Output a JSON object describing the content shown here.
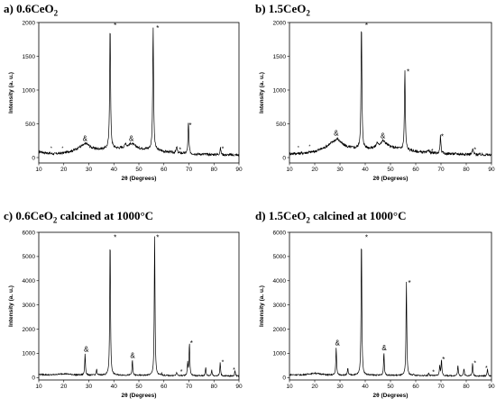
{
  "panels": [
    {
      "title_main": "a) 0.6CeO",
      "title_sub": "2",
      "title_tail": ""
    },
    {
      "title_main": "b) 1.5CeO",
      "title_sub": "2",
      "title_tail": ""
    },
    {
      "title_main": "c) 0.6CeO",
      "title_sub": "2",
      "title_tail": " calcined at 1000°C"
    },
    {
      "title_main": "d) 1.5CeO",
      "title_sub": "2",
      "title_tail": " calcined at 1000°C"
    }
  ],
  "chart_data": [
    {
      "type": "line",
      "title": "a) 0.6CeO2",
      "xlabel": "2θ (Degrees)",
      "ylabel": "Intensity (a. u.)",
      "xlim": [
        10,
        90
      ],
      "ylim": [
        -80,
        2000
      ],
      "xticks": [
        10,
        20,
        30,
        40,
        50,
        60,
        70,
        80,
        90
      ],
      "yticks": [
        0,
        500,
        1000,
        1500,
        2000
      ],
      "baseline": [
        [
          10,
          90
        ],
        [
          13,
          70
        ],
        [
          16,
          55
        ],
        [
          20,
          70
        ],
        [
          24,
          110
        ],
        [
          27,
          170
        ],
        [
          29,
          210
        ],
        [
          31,
          150
        ],
        [
          33,
          130
        ],
        [
          36,
          130
        ],
        [
          38,
          140
        ],
        [
          42,
          140
        ],
        [
          45,
          160
        ],
        [
          47,
          210
        ],
        [
          50,
          140
        ],
        [
          55,
          120
        ],
        [
          60,
          90
        ],
        [
          65,
          70
        ],
        [
          70,
          55
        ],
        [
          75,
          50
        ],
        [
          80,
          45
        ],
        [
          85,
          40
        ],
        [
          90,
          38
        ]
      ],
      "peaks": [
        {
          "x": 38.5,
          "y": 2000,
          "w": 0.35
        },
        {
          "x": 44.7,
          "y": 220,
          "w": 0.5
        },
        {
          "x": 55.7,
          "y": 1960,
          "w": 0.35
        },
        {
          "x": 65.1,
          "y": 160,
          "w": 0.4
        },
        {
          "x": 69.8,
          "y": 520,
          "w": 0.35
        },
        {
          "x": 82.6,
          "y": 140,
          "w": 0.4
        }
      ],
      "noise": 18,
      "annotations": [
        {
          "x": 15,
          "y": 150,
          "text": "*",
          "size": 5
        },
        {
          "x": 19.5,
          "y": 150,
          "text": "*",
          "size": 5
        },
        {
          "x": 28.5,
          "y": 250,
          "text": "&",
          "size": 8
        },
        {
          "x": 47,
          "y": 250,
          "text": "&",
          "size": 8
        },
        {
          "x": 40.5,
          "y": 1980,
          "text": "*",
          "size": 8
        },
        {
          "x": 57.5,
          "y": 1940,
          "text": "*",
          "size": 8
        },
        {
          "x": 66.5,
          "y": 140,
          "text": "*",
          "size": 7
        },
        {
          "x": 70.5,
          "y": 500,
          "text": "*",
          "size": 8
        },
        {
          "x": 83.5,
          "y": 150,
          "text": "*",
          "size": 7
        }
      ]
    },
    {
      "type": "line",
      "title": "b) 1.5CeO2",
      "xlabel": "2θ (Degrees)",
      "ylabel": "Intensity (a. u.)",
      "xlim": [
        10,
        90
      ],
      "ylim": [
        -80,
        2000
      ],
      "xticks": [
        10,
        20,
        30,
        40,
        50,
        60,
        70,
        80,
        90
      ],
      "yticks": [
        0,
        500,
        1000,
        1500,
        2000
      ],
      "baseline": [
        [
          10,
          60
        ],
        [
          13,
          60
        ],
        [
          16,
          70
        ],
        [
          20,
          90
        ],
        [
          24,
          150
        ],
        [
          27,
          230
        ],
        [
          29,
          280
        ],
        [
          31,
          200
        ],
        [
          33,
          160
        ],
        [
          36,
          140
        ],
        [
          38,
          140
        ],
        [
          42,
          140
        ],
        [
          45,
          170
        ],
        [
          47,
          250
        ],
        [
          50,
          160
        ],
        [
          55,
          120
        ],
        [
          60,
          90
        ],
        [
          65,
          70
        ],
        [
          70,
          60
        ],
        [
          75,
          55
        ],
        [
          80,
          50
        ],
        [
          85,
          45
        ],
        [
          90,
          40
        ]
      ],
      "peaks": [
        {
          "x": 38.5,
          "y": 2000,
          "w": 0.35
        },
        {
          "x": 44.7,
          "y": 230,
          "w": 0.5
        },
        {
          "x": 55.7,
          "y": 1300,
          "w": 0.35
        },
        {
          "x": 65.1,
          "y": 130,
          "w": 0.4
        },
        {
          "x": 69.8,
          "y": 330,
          "w": 0.35
        },
        {
          "x": 82.6,
          "y": 130,
          "w": 0.4
        }
      ],
      "noise": 20,
      "annotations": [
        {
          "x": 13.5,
          "y": 160,
          "text": "*",
          "size": 5
        },
        {
          "x": 18,
          "y": 180,
          "text": "*",
          "size": 5
        },
        {
          "x": 28.5,
          "y": 330,
          "text": "&",
          "size": 8
        },
        {
          "x": 47,
          "y": 290,
          "text": "&",
          "size": 8
        },
        {
          "x": 40.5,
          "y": 1980,
          "text": "*",
          "size": 8
        },
        {
          "x": 57,
          "y": 1290,
          "text": "*",
          "size": 8
        },
        {
          "x": 66.5,
          "y": 120,
          "text": "*",
          "size": 7
        },
        {
          "x": 70.5,
          "y": 330,
          "text": "*",
          "size": 8
        },
        {
          "x": 83.5,
          "y": 140,
          "text": "*",
          "size": 7
        }
      ]
    },
    {
      "type": "line",
      "title": "c) 0.6CeO2 calcined at 1000°C",
      "xlabel": "2θ (Degrees)",
      "ylabel": "Intensity (a. u.)",
      "xlim": [
        10,
        90
      ],
      "ylim": [
        -100,
        6000
      ],
      "xticks": [
        10,
        20,
        30,
        40,
        50,
        60,
        70,
        80,
        90
      ],
      "yticks": [
        0,
        1000,
        2000,
        3000,
        4000,
        5000,
        6000
      ],
      "baseline": [
        [
          10,
          130
        ],
        [
          15,
          110
        ],
        [
          20,
          160
        ],
        [
          25,
          110
        ],
        [
          30,
          100
        ],
        [
          40,
          100
        ],
        [
          50,
          90
        ],
        [
          60,
          80
        ],
        [
          70,
          75
        ],
        [
          80,
          70
        ],
        [
          90,
          60
        ]
      ],
      "peaks": [
        {
          "x": 28.5,
          "y": 1000,
          "w": 0.3
        },
        {
          "x": 33.1,
          "y": 350,
          "w": 0.3
        },
        {
          "x": 38.5,
          "y": 5900,
          "w": 0.3
        },
        {
          "x": 47.4,
          "y": 720,
          "w": 0.3
        },
        {
          "x": 56.3,
          "y": 5900,
          "w": 0.3
        },
        {
          "x": 59.1,
          "y": 150,
          "w": 0.3
        },
        {
          "x": 65.1,
          "y": 220,
          "w": 0.3
        },
        {
          "x": 69.5,
          "y": 600,
          "w": 0.3
        },
        {
          "x": 70.2,
          "y": 1450,
          "w": 0.3
        },
        {
          "x": 76.7,
          "y": 420,
          "w": 0.3
        },
        {
          "x": 79.1,
          "y": 320,
          "w": 0.3
        },
        {
          "x": 82.5,
          "y": 620,
          "w": 0.3
        },
        {
          "x": 88.4,
          "y": 300,
          "w": 0.3
        }
      ],
      "noise": 25,
      "annotations": [
        {
          "x": 29,
          "y": 1080,
          "text": "&",
          "size": 8
        },
        {
          "x": 47.5,
          "y": 810,
          "text": "&",
          "size": 8
        },
        {
          "x": 40.5,
          "y": 5850,
          "text": "*",
          "size": 8
        },
        {
          "x": 57.5,
          "y": 5850,
          "text": "*",
          "size": 8
        },
        {
          "x": 67,
          "y": 310,
          "text": "*",
          "size": 7
        },
        {
          "x": 71,
          "y": 1480,
          "text": "*",
          "size": 8
        },
        {
          "x": 83.5,
          "y": 700,
          "text": "*",
          "size": 7
        },
        {
          "x": 88,
          "y": 380,
          "text": "*",
          "size": 7
        }
      ]
    },
    {
      "type": "line",
      "title": "d) 1.5CeO2 calcined at 1000°C",
      "xlabel": "2θ (Degrees)",
      "ylabel": "Intensity (a. u.)",
      "xlim": [
        10,
        90
      ],
      "ylim": [
        -100,
        6000
      ],
      "xticks": [
        10,
        20,
        30,
        40,
        50,
        60,
        70,
        80,
        90
      ],
      "yticks": [
        0,
        1000,
        2000,
        3000,
        4000,
        5000,
        6000
      ],
      "baseline": [
        [
          10,
          120
        ],
        [
          15,
          110
        ],
        [
          20,
          180
        ],
        [
          25,
          110
        ],
        [
          30,
          100
        ],
        [
          40,
          100
        ],
        [
          50,
          90
        ],
        [
          60,
          80
        ],
        [
          70,
          75
        ],
        [
          80,
          70
        ],
        [
          90,
          60
        ]
      ],
      "peaks": [
        {
          "x": 28.5,
          "y": 1250,
          "w": 0.3
        },
        {
          "x": 33.1,
          "y": 380,
          "w": 0.3
        },
        {
          "x": 38.5,
          "y": 5900,
          "w": 0.3
        },
        {
          "x": 47.4,
          "y": 1050,
          "w": 0.3
        },
        {
          "x": 56.3,
          "y": 4000,
          "w": 0.3
        },
        {
          "x": 59.1,
          "y": 150,
          "w": 0.3
        },
        {
          "x": 65.1,
          "y": 200,
          "w": 0.3
        },
        {
          "x": 69.5,
          "y": 500,
          "w": 0.3
        },
        {
          "x": 70.2,
          "y": 750,
          "w": 0.3
        },
        {
          "x": 76.7,
          "y": 500,
          "w": 0.3
        },
        {
          "x": 79.1,
          "y": 380,
          "w": 0.3
        },
        {
          "x": 82.5,
          "y": 580,
          "w": 0.3
        },
        {
          "x": 88.4,
          "y": 380,
          "w": 0.3
        }
      ],
      "noise": 25,
      "annotations": [
        {
          "x": 29,
          "y": 1330,
          "text": "&",
          "size": 8
        },
        {
          "x": 47.5,
          "y": 1120,
          "text": "&",
          "size": 8
        },
        {
          "x": 40.5,
          "y": 5850,
          "text": "*",
          "size": 8
        },
        {
          "x": 57.5,
          "y": 3970,
          "text": "*",
          "size": 8
        },
        {
          "x": 67,
          "y": 290,
          "text": "*",
          "size": 7
        },
        {
          "x": 71,
          "y": 800,
          "text": "*",
          "size": 8
        },
        {
          "x": 83.5,
          "y": 660,
          "text": "*",
          "size": 7
        },
        {
          "x": 88,
          "y": 450,
          "text": "*",
          "size": 7
        }
      ]
    }
  ]
}
